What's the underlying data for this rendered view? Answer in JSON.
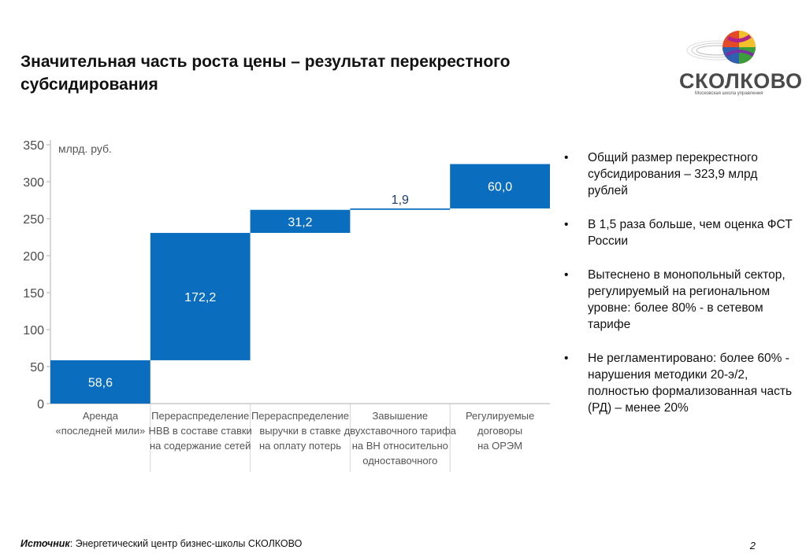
{
  "slide": {
    "title": "Значительная часть роста цены – результат перекрестного субсидирования",
    "logo": {
      "name": "СКОЛКОВО",
      "subtitle": "Московская школа управления"
    },
    "bullets": [
      "Общий размер перекрестного субсидирования – 323,9 млрд рублей",
      "В 1,5 раза больше, чем оценка ФСТ России",
      "Вытеснено в монопольный сектор, регулируемый на региональном уровне: более 80% - в сетевом тарифе",
      "Не регламентировано: более 60% - нарушения методики 20-э/2, полностью формализованная часть (РД) – менее 20%"
    ],
    "source_label": "Источник",
    "source_text": ": Энергетический центр бизнес-школы СКОЛКОВО",
    "page_number": "2"
  },
  "chart_data": {
    "type": "bar",
    "subtype": "waterfall",
    "unit_label": "млрд. руб.",
    "ylim": [
      0,
      350
    ],
    "yticks": [
      "0",
      "50",
      "100",
      "150",
      "200",
      "250",
      "300",
      "350"
    ],
    "bar_color": "#0b6dbd",
    "categories": [
      [
        "Аренда",
        "«последней мили»"
      ],
      [
        "Перераспределение",
        "НВВ в составе ставки",
        "на содержание сетей"
      ],
      [
        "Перераспределение",
        "выручки в ставке",
        "на оплату потерь"
      ],
      [
        "Завышение",
        "двухставочного тарифа",
        "на ВН относительно",
        "одноставочного"
      ],
      [
        "Регулируемые",
        "договоры",
        "на ОРЭМ"
      ]
    ],
    "values": [
      58.6,
      172.2,
      31.2,
      1.9,
      60.0
    ],
    "labels": [
      "58,6",
      "172,2",
      "31,2",
      "1,9",
      "60,0"
    ],
    "grid": false
  }
}
